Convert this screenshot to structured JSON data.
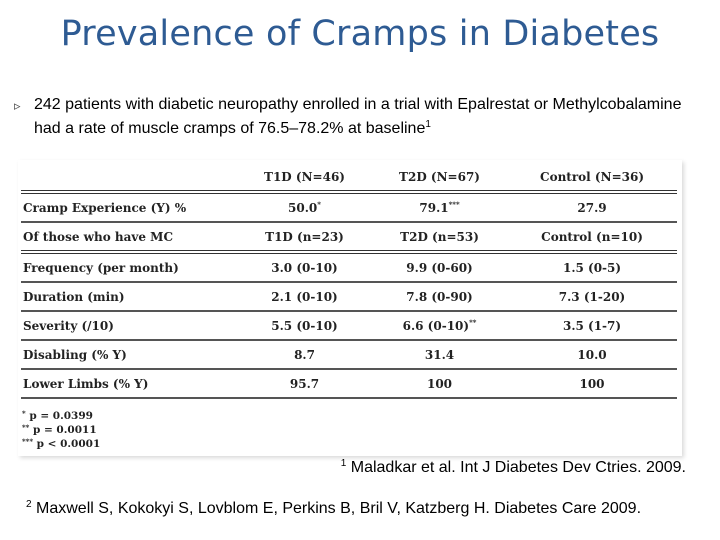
{
  "slide": {
    "title": "Prevalence of Cramps in Diabetes",
    "bullet": {
      "icon": "bullet-arrow-icon",
      "text": "242 patients with diabetic neuropathy enrolled in a trial with Epalrestat or Methylcobalamine had a rate of muscle cramps of 76.5–78.2% at baseline",
      "superscript": "1"
    }
  },
  "table": {
    "header": [
      "",
      "T1D (N=46)",
      "T2D (N=67)",
      "Control (N=36)"
    ],
    "rows": [
      {
        "label": "Cramp Experience (Y) %",
        "t1d": "50.0",
        "t1d_sup": "*",
        "t2d": "79.1",
        "t2d_sup": "***",
        "control": "27.9",
        "control_sup": ""
      },
      {
        "label": "Of those who have MC",
        "t1d": "T1D (n=23)",
        "t1d_sup": "",
        "t2d": "T2D (n=53)",
        "t2d_sup": "",
        "control": "Control (n=10)",
        "control_sup": ""
      },
      {
        "label": "Frequency (per month)",
        "t1d": "3.0 (0-10)",
        "t1d_sup": "",
        "t2d": "9.9 (0-60)",
        "t2d_sup": "",
        "control": "1.5 (0-5)",
        "control_sup": ""
      },
      {
        "label": "Duration (min)",
        "t1d": "2.1 (0-10)",
        "t1d_sup": "",
        "t2d": "7.8 (0-90)",
        "t2d_sup": "",
        "control": "7.3 (1-20)",
        "control_sup": ""
      },
      {
        "label": "Severity (/10)",
        "t1d": "5.5 (0-10)",
        "t1d_sup": "",
        "t2d": "6.6 (0-10)",
        "t2d_sup": "**",
        "control": "3.5 (1-7)",
        "control_sup": ""
      },
      {
        "label": "Disabling (% Y)",
        "t1d": "8.7",
        "t1d_sup": "",
        "t2d": "31.4",
        "t2d_sup": "",
        "control": "10.0",
        "control_sup": ""
      },
      {
        "label": "Lower Limbs (% Y)",
        "t1d": "95.7",
        "t1d_sup": "",
        "t2d": "100",
        "t2d_sup": "",
        "control": "100",
        "control_sup": ""
      }
    ],
    "notes": [
      {
        "mark": "*",
        "text": "p = 0.0399"
      },
      {
        "mark": "**",
        "text": "p = 0.0011"
      },
      {
        "mark": "***",
        "text": "p < 0.0001"
      }
    ]
  },
  "references": [
    {
      "num": "1",
      "text": "Maladkar et al. Int J Diabetes Dev Ctries. 2009."
    },
    {
      "num": "2",
      "text": "Maxwell S, Kokokyi S, Lovblom E, Perkins B, Bril V, Katzberg H. Diabetes Care 2009."
    }
  ]
}
